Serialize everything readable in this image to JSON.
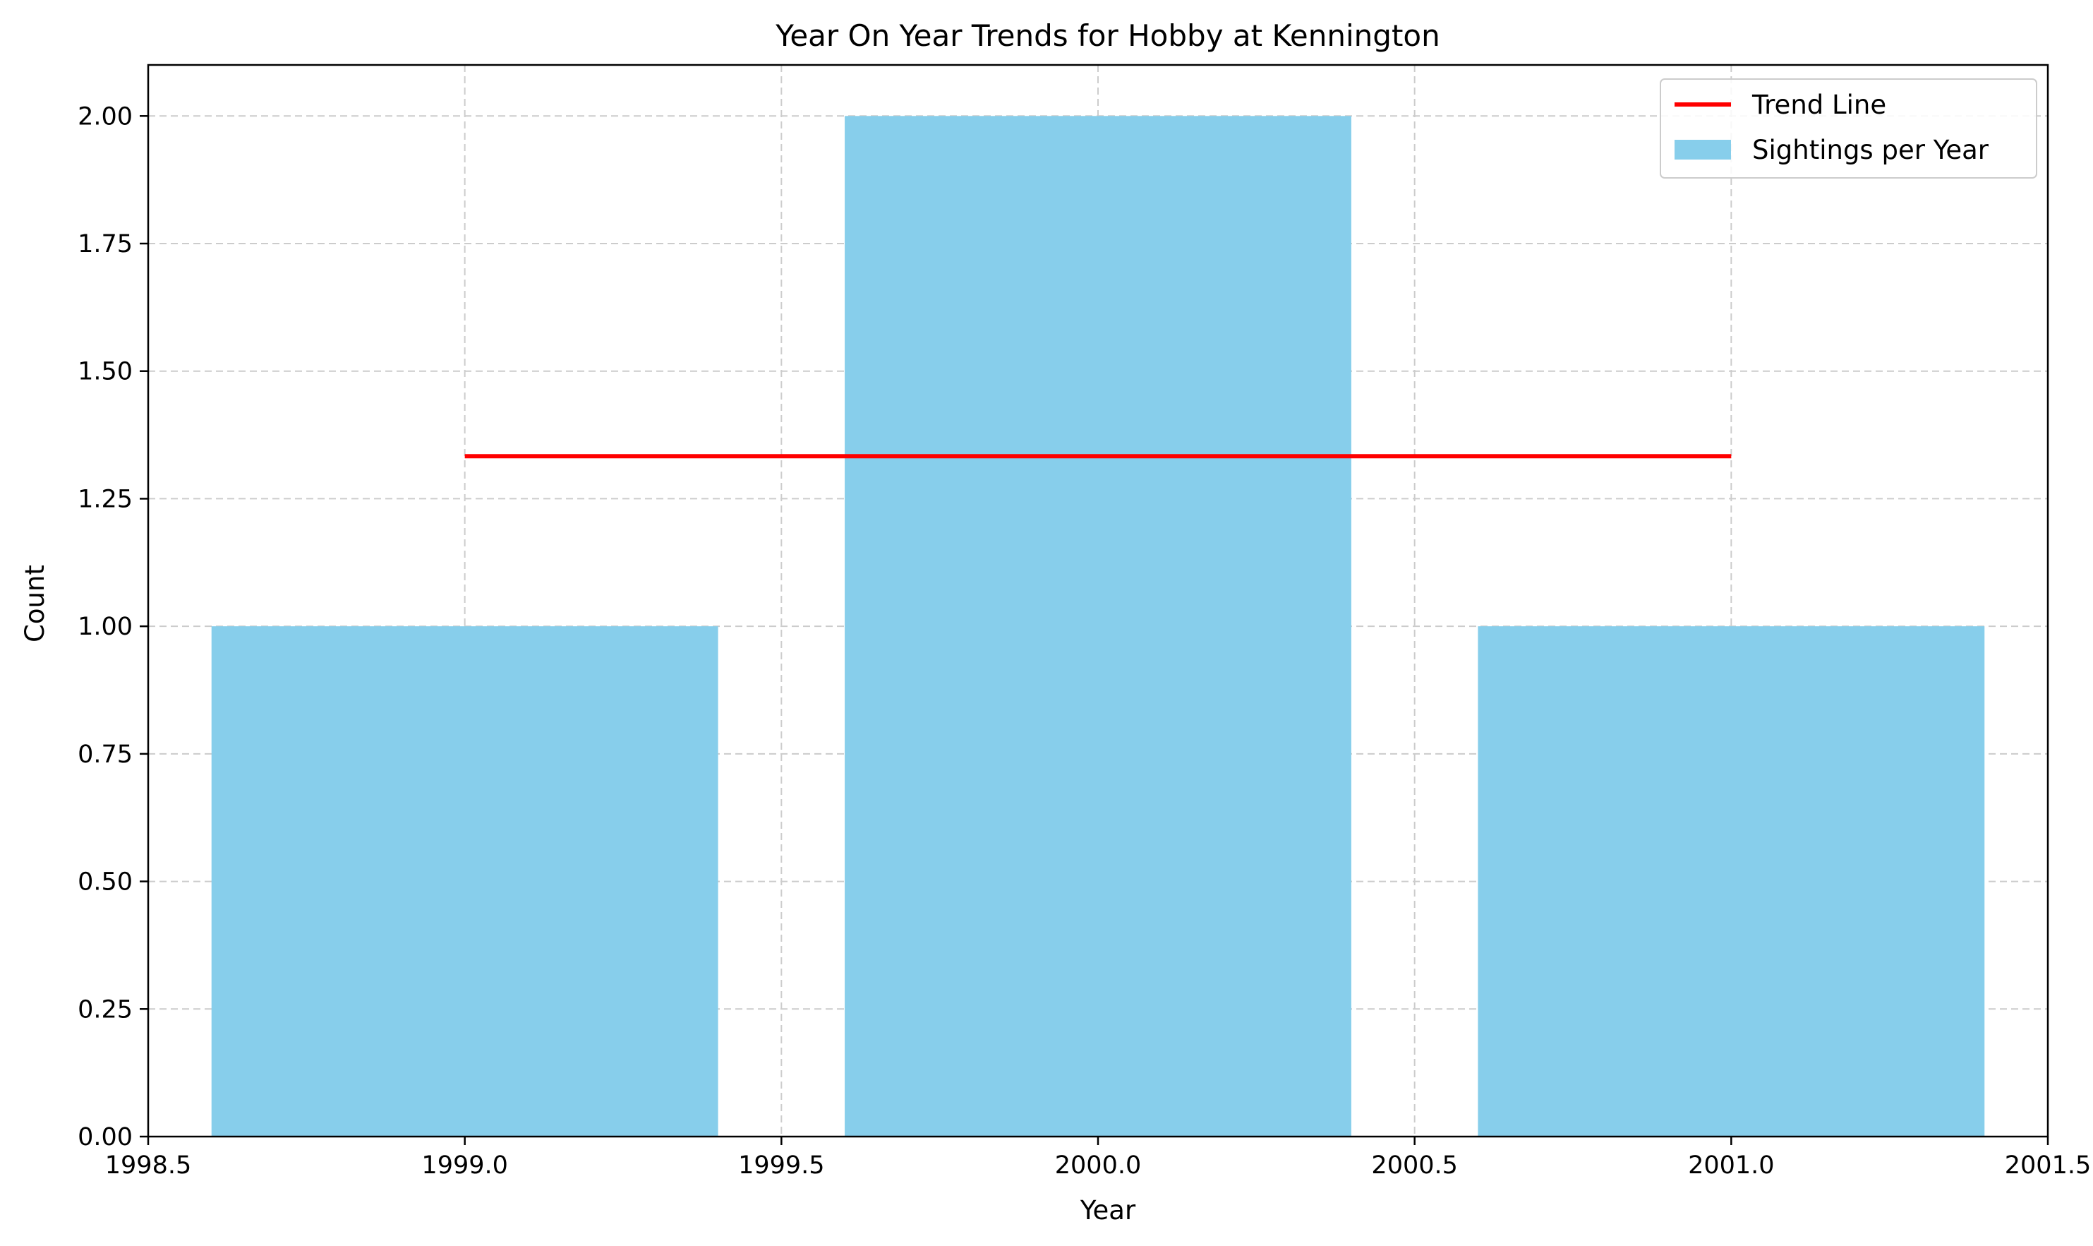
{
  "chart_data": {
    "type": "bar",
    "title": "Year On Year Trends for Hobby at Kennington",
    "xlabel": "Year",
    "ylabel": "Count",
    "xlim": [
      1998.5,
      2001.5
    ],
    "ylim": [
      0,
      2.1
    ],
    "xticks": [
      "1998.5",
      "1999.0",
      "1999.5",
      "2000.0",
      "2000.5",
      "2001.0",
      "2001.5"
    ],
    "yticks": [
      "0.00",
      "0.25",
      "0.50",
      "0.75",
      "1.00",
      "1.25",
      "1.50",
      "1.75",
      "2.00"
    ],
    "grid": true,
    "legend_position": "top-right",
    "bar_width": 0.8,
    "series": [
      {
        "name": "Sightings per Year",
        "type": "bar",
        "color": "#87CEEB",
        "x": [
          1999,
          2000,
          2001
        ],
        "values": [
          1,
          2,
          1
        ]
      },
      {
        "name": "Trend Line",
        "type": "line",
        "color": "#FF0000",
        "x": [
          1999,
          2001
        ],
        "values": [
          1.3333,
          1.3333
        ]
      }
    ]
  }
}
